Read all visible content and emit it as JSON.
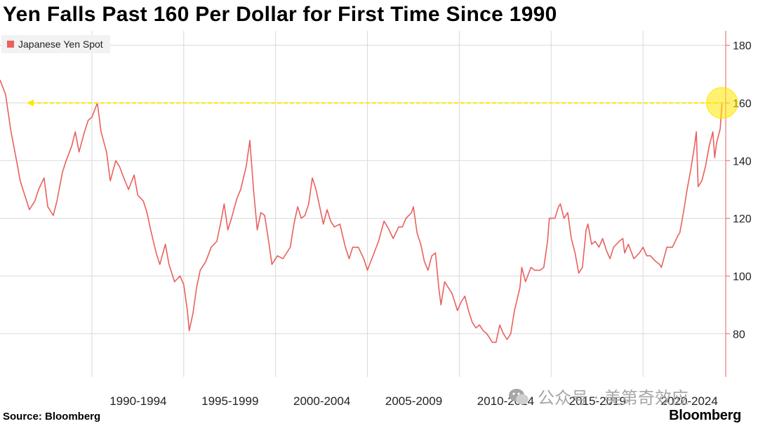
{
  "title": "Yen Falls Past 160 Per Dollar for First Time Since 1990",
  "source": "Source: Bloomberg",
  "brand": "Bloomberg",
  "watermark": "公众号 · 美第奇效应",
  "colors": {
    "series": "#e8615e",
    "highlight": "#ffe800",
    "grid": "#d9d9d9",
    "axis": "#e8615e"
  },
  "chart_data": {
    "type": "line",
    "title": "Yen Falls Past 160 Per Dollar for First Time Since 1990",
    "xlabel": "",
    "ylabel": "",
    "ylim": [
      65,
      185
    ],
    "xlim": [
      1985.0,
      2024.5
    ],
    "y_ticks": [
      80,
      100,
      120,
      140,
      160,
      180
    ],
    "x_tick_labels": [
      "1990-1994",
      "1995-1999",
      "2000-2004",
      "2005-2009",
      "2010-2014",
      "2015-2019",
      "2020-2024"
    ],
    "x_tick_positions": [
      1990,
      1995,
      2000,
      2005,
      2010,
      2015,
      2020
    ],
    "reference_line": {
      "value": 160,
      "label": "160",
      "style": "dashed"
    },
    "highlight_point": {
      "x": 2024.3,
      "y": 160
    },
    "series": [
      {
        "name": "Japanese Yen Spot",
        "points": [
          [
            1985.0,
            168
          ],
          [
            1985.3,
            163
          ],
          [
            1985.6,
            150
          ],
          [
            1985.9,
            140
          ],
          [
            1986.1,
            133
          ],
          [
            1986.4,
            127
          ],
          [
            1986.6,
            123
          ],
          [
            1986.9,
            126
          ],
          [
            1987.1,
            130
          ],
          [
            1987.4,
            134
          ],
          [
            1987.6,
            124
          ],
          [
            1987.9,
            121
          ],
          [
            1988.1,
            126
          ],
          [
            1988.4,
            136
          ],
          [
            1988.6,
            140
          ],
          [
            1988.9,
            145
          ],
          [
            1989.1,
            150
          ],
          [
            1989.3,
            143
          ],
          [
            1989.6,
            150
          ],
          [
            1989.8,
            154
          ],
          [
            1990.0,
            155
          ],
          [
            1990.3,
            160
          ],
          [
            1990.5,
            150
          ],
          [
            1990.8,
            143
          ],
          [
            1991.0,
            133
          ],
          [
            1991.3,
            140
          ],
          [
            1991.5,
            138
          ],
          [
            1991.8,
            133
          ],
          [
            1992.0,
            130
          ],
          [
            1992.3,
            135
          ],
          [
            1992.5,
            128
          ],
          [
            1992.8,
            126
          ],
          [
            1993.0,
            122
          ],
          [
            1993.2,
            116
          ],
          [
            1993.5,
            108
          ],
          [
            1993.7,
            104
          ],
          [
            1994.0,
            111
          ],
          [
            1994.2,
            104
          ],
          [
            1994.5,
            98
          ],
          [
            1994.8,
            100
          ],
          [
            1995.0,
            97
          ],
          [
            1995.2,
            88
          ],
          [
            1995.3,
            81
          ],
          [
            1995.5,
            87
          ],
          [
            1995.7,
            96
          ],
          [
            1995.9,
            102
          ],
          [
            1996.2,
            105
          ],
          [
            1996.5,
            110
          ],
          [
            1996.8,
            112
          ],
          [
            1997.0,
            118
          ],
          [
            1997.2,
            125
          ],
          [
            1997.4,
            116
          ],
          [
            1997.6,
            120
          ],
          [
            1997.9,
            127
          ],
          [
            1998.1,
            130
          ],
          [
            1998.4,
            138
          ],
          [
            1998.6,
            147
          ],
          [
            1998.8,
            130
          ],
          [
            1999.0,
            116
          ],
          [
            1999.2,
            122
          ],
          [
            1999.4,
            121
          ],
          [
            1999.6,
            113
          ],
          [
            1999.8,
            104
          ],
          [
            2000.1,
            107
          ],
          [
            2000.4,
            106
          ],
          [
            2000.6,
            108
          ],
          [
            2000.8,
            110
          ],
          [
            2001.0,
            118
          ],
          [
            2001.2,
            124
          ],
          [
            2001.4,
            120
          ],
          [
            2001.6,
            121
          ],
          [
            2001.8,
            125
          ],
          [
            2002.0,
            134
          ],
          [
            2002.2,
            130
          ],
          [
            2002.4,
            124
          ],
          [
            2002.6,
            118
          ],
          [
            2002.8,
            123
          ],
          [
            2003.0,
            119
          ],
          [
            2003.2,
            117
          ],
          [
            2003.5,
            118
          ],
          [
            2003.8,
            110
          ],
          [
            2004.0,
            106
          ],
          [
            2004.2,
            110
          ],
          [
            2004.5,
            110
          ],
          [
            2004.8,
            106
          ],
          [
            2005.0,
            102
          ],
          [
            2005.3,
            107
          ],
          [
            2005.6,
            112
          ],
          [
            2005.9,
            119
          ],
          [
            2006.1,
            117
          ],
          [
            2006.4,
            113
          ],
          [
            2006.7,
            117
          ],
          [
            2006.9,
            117
          ],
          [
            2007.1,
            120
          ],
          [
            2007.4,
            122
          ],
          [
            2007.5,
            124
          ],
          [
            2007.7,
            115
          ],
          [
            2007.9,
            111
          ],
          [
            2008.1,
            105
          ],
          [
            2008.3,
            102
          ],
          [
            2008.5,
            107
          ],
          [
            2008.7,
            108
          ],
          [
            2008.9,
            95
          ],
          [
            2009.0,
            90
          ],
          [
            2009.2,
            98
          ],
          [
            2009.4,
            96
          ],
          [
            2009.6,
            94
          ],
          [
            2009.9,
            88
          ],
          [
            2010.1,
            91
          ],
          [
            2010.3,
            93
          ],
          [
            2010.5,
            88
          ],
          [
            2010.7,
            84
          ],
          [
            2010.9,
            82
          ],
          [
            2011.1,
            83
          ],
          [
            2011.3,
            81
          ],
          [
            2011.5,
            80
          ],
          [
            2011.8,
            77
          ],
          [
            2012.0,
            77
          ],
          [
            2012.2,
            83
          ],
          [
            2012.4,
            80
          ],
          [
            2012.6,
            78
          ],
          [
            2012.8,
            80
          ],
          [
            2013.0,
            88
          ],
          [
            2013.3,
            96
          ],
          [
            2013.4,
            103
          ],
          [
            2013.6,
            98
          ],
          [
            2013.9,
            103
          ],
          [
            2014.1,
            102
          ],
          [
            2014.4,
            102
          ],
          [
            2014.6,
            103
          ],
          [
            2014.8,
            112
          ],
          [
            2014.9,
            120
          ],
          [
            2015.2,
            120
          ],
          [
            2015.4,
            124
          ],
          [
            2015.5,
            125
          ],
          [
            2015.7,
            120
          ],
          [
            2015.9,
            122
          ],
          [
            2016.1,
            113
          ],
          [
            2016.3,
            108
          ],
          [
            2016.5,
            101
          ],
          [
            2016.7,
            103
          ],
          [
            2016.9,
            116
          ],
          [
            2017.0,
            118
          ],
          [
            2017.2,
            111
          ],
          [
            2017.4,
            112
          ],
          [
            2017.6,
            110
          ],
          [
            2017.8,
            113
          ],
          [
            2018.0,
            109
          ],
          [
            2018.2,
            106
          ],
          [
            2018.4,
            110
          ],
          [
            2018.7,
            112
          ],
          [
            2018.9,
            113
          ],
          [
            2019.0,
            108
          ],
          [
            2019.2,
            111
          ],
          [
            2019.5,
            106
          ],
          [
            2019.8,
            108
          ],
          [
            2020.0,
            110
          ],
          [
            2020.2,
            107
          ],
          [
            2020.4,
            107
          ],
          [
            2020.7,
            105
          ],
          [
            2020.9,
            104
          ],
          [
            2021.0,
            103
          ],
          [
            2021.3,
            110
          ],
          [
            2021.6,
            110
          ],
          [
            2021.9,
            114
          ],
          [
            2022.0,
            115
          ],
          [
            2022.2,
            122
          ],
          [
            2022.4,
            130
          ],
          [
            2022.6,
            137
          ],
          [
            2022.8,
            145
          ],
          [
            2022.9,
            150
          ],
          [
            2023.0,
            131
          ],
          [
            2023.2,
            133
          ],
          [
            2023.4,
            138
          ],
          [
            2023.6,
            145
          ],
          [
            2023.8,
            150
          ],
          [
            2023.9,
            141
          ],
          [
            2024.0,
            146
          ],
          [
            2024.2,
            151
          ],
          [
            2024.3,
            160
          ]
        ]
      }
    ]
  }
}
